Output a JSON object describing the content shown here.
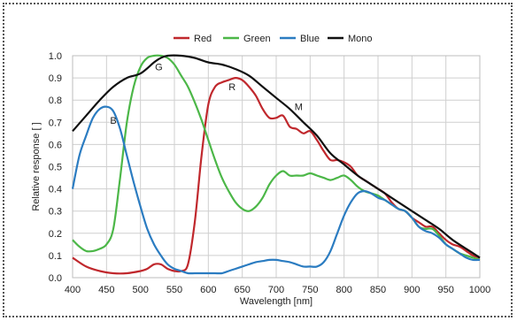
{
  "chart_data": {
    "type": "line",
    "xlabel": "Wavelength [nm]",
    "ylabel": "Relative response [ ]",
    "xlim": [
      400,
      1000
    ],
    "ylim": [
      0,
      1.0
    ],
    "x_ticks": [
      400,
      450,
      500,
      550,
      600,
      650,
      700,
      750,
      800,
      850,
      900,
      950,
      1000
    ],
    "y_ticks": [
      0.0,
      0.1,
      0.2,
      0.3,
      0.4,
      0.5,
      0.6,
      0.7,
      0.8,
      0.9,
      1.0
    ],
    "x_tick_labels": [
      "400",
      "450",
      "500",
      "550",
      "600",
      "650",
      "700",
      "750",
      "800",
      "850",
      "900",
      "950",
      "1000"
    ],
    "y_tick_labels": [
      "0.0",
      "0.1",
      "0.2",
      "0.3",
      "0.4",
      "0.5",
      "0.6",
      "0.7",
      "0.8",
      "0.9",
      "1.0"
    ],
    "grid": true,
    "legend_position": "top",
    "series": [
      {
        "name": "Red",
        "label": "R",
        "label_at": [
          635,
          0.86
        ],
        "color": "#c0282d",
        "x": [
          400,
          420,
          440,
          460,
          480,
          500,
          510,
          520,
          530,
          540,
          550,
          560,
          570,
          580,
          590,
          600,
          610,
          620,
          630,
          640,
          650,
          660,
          670,
          680,
          690,
          700,
          710,
          720,
          730,
          740,
          750,
          760,
          770,
          780,
          790,
          800,
          810,
          820,
          830,
          840,
          850,
          860,
          870,
          880,
          890,
          900,
          910,
          920,
          930,
          940,
          950,
          960,
          970,
          980,
          990,
          1000
        ],
        "y": [
          0.09,
          0.05,
          0.03,
          0.02,
          0.02,
          0.03,
          0.04,
          0.06,
          0.06,
          0.04,
          0.03,
          0.03,
          0.06,
          0.25,
          0.55,
          0.78,
          0.86,
          0.88,
          0.89,
          0.9,
          0.89,
          0.86,
          0.82,
          0.76,
          0.72,
          0.72,
          0.73,
          0.68,
          0.67,
          0.65,
          0.66,
          0.62,
          0.57,
          0.53,
          0.53,
          0.52,
          0.5,
          0.46,
          0.44,
          0.42,
          0.4,
          0.38,
          0.34,
          0.31,
          0.3,
          0.27,
          0.25,
          0.23,
          0.23,
          0.2,
          0.17,
          0.15,
          0.14,
          0.12,
          0.1,
          0.09
        ]
      },
      {
        "name": "Green",
        "label": "G",
        "label_at": [
          527,
          0.95
        ],
        "color": "#4cb748",
        "x": [
          400,
          410,
          420,
          430,
          440,
          450,
          460,
          470,
          480,
          490,
          500,
          510,
          520,
          530,
          540,
          550,
          560,
          570,
          580,
          590,
          600,
          610,
          620,
          630,
          640,
          650,
          660,
          670,
          680,
          690,
          700,
          710,
          720,
          730,
          740,
          750,
          760,
          770,
          780,
          790,
          800,
          810,
          820,
          830,
          840,
          850,
          860,
          870,
          880,
          890,
          900,
          910,
          920,
          930,
          940,
          950,
          960,
          970,
          980,
          990,
          1000
        ],
        "y": [
          0.17,
          0.14,
          0.12,
          0.12,
          0.13,
          0.15,
          0.22,
          0.45,
          0.7,
          0.86,
          0.95,
          0.99,
          1.0,
          1.0,
          0.99,
          0.96,
          0.91,
          0.86,
          0.79,
          0.71,
          0.62,
          0.53,
          0.45,
          0.39,
          0.34,
          0.31,
          0.3,
          0.32,
          0.36,
          0.42,
          0.46,
          0.48,
          0.46,
          0.46,
          0.46,
          0.47,
          0.46,
          0.45,
          0.44,
          0.45,
          0.46,
          0.44,
          0.41,
          0.39,
          0.38,
          0.37,
          0.35,
          0.33,
          0.31,
          0.3,
          0.27,
          0.23,
          0.22,
          0.22,
          0.19,
          0.15,
          0.13,
          0.11,
          0.1,
          0.09,
          0.08
        ]
      },
      {
        "name": "Blue",
        "label": "B",
        "label_at": [
          460,
          0.71
        ],
        "color": "#2b7cc1",
        "x": [
          400,
          410,
          420,
          430,
          440,
          450,
          460,
          470,
          480,
          490,
          500,
          510,
          520,
          530,
          540,
          550,
          560,
          570,
          580,
          590,
          600,
          610,
          620,
          630,
          640,
          650,
          660,
          670,
          680,
          690,
          700,
          710,
          720,
          730,
          740,
          750,
          760,
          770,
          780,
          790,
          800,
          810,
          820,
          830,
          840,
          850,
          860,
          870,
          880,
          890,
          900,
          910,
          920,
          930,
          940,
          950,
          960,
          970,
          980,
          990,
          1000
        ],
        "y": [
          0.4,
          0.55,
          0.64,
          0.72,
          0.76,
          0.77,
          0.75,
          0.67,
          0.55,
          0.43,
          0.32,
          0.22,
          0.15,
          0.1,
          0.06,
          0.04,
          0.03,
          0.02,
          0.02,
          0.02,
          0.02,
          0.02,
          0.02,
          0.03,
          0.04,
          0.05,
          0.06,
          0.07,
          0.075,
          0.08,
          0.08,
          0.075,
          0.07,
          0.06,
          0.05,
          0.05,
          0.05,
          0.07,
          0.12,
          0.2,
          0.28,
          0.34,
          0.38,
          0.39,
          0.38,
          0.36,
          0.35,
          0.33,
          0.31,
          0.3,
          0.27,
          0.23,
          0.21,
          0.2,
          0.18,
          0.15,
          0.13,
          0.11,
          0.09,
          0.08,
          0.08
        ]
      },
      {
        "name": "Mono",
        "label": "M",
        "label_at": [
          733,
          0.77
        ],
        "color": "#111111",
        "x": [
          400,
          420,
          440,
          460,
          480,
          500,
          520,
          530,
          540,
          560,
          580,
          600,
          620,
          640,
          660,
          680,
          700,
          720,
          740,
          760,
          780,
          800,
          820,
          840,
          860,
          880,
          900,
          920,
          940,
          960,
          980,
          1000
        ],
        "y": [
          0.66,
          0.73,
          0.8,
          0.86,
          0.9,
          0.92,
          0.97,
          0.99,
          1.0,
          1.0,
          0.99,
          0.97,
          0.96,
          0.94,
          0.91,
          0.86,
          0.81,
          0.76,
          0.7,
          0.64,
          0.56,
          0.51,
          0.46,
          0.42,
          0.38,
          0.34,
          0.3,
          0.26,
          0.22,
          0.17,
          0.13,
          0.09
        ]
      }
    ]
  }
}
